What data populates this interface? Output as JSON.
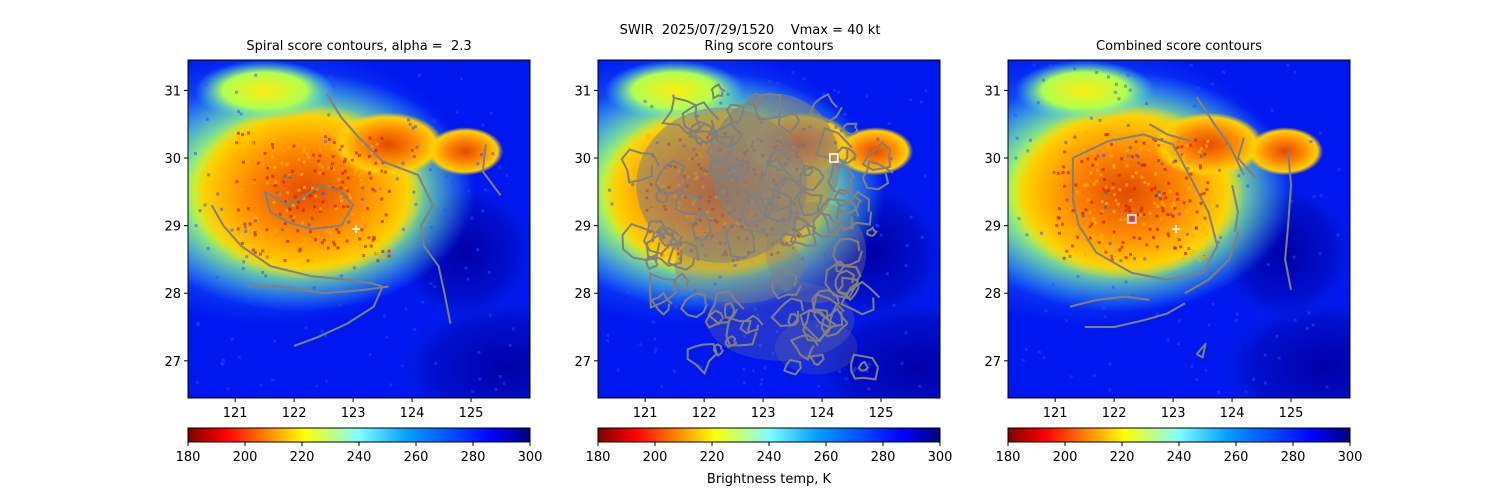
{
  "figure": {
    "suptitle": "SWIR  2025/07/29/1520    Vmax = 40 kt",
    "colorbar_label": "Brightness temp, K"
  },
  "chart_data": [
    {
      "type": "heatmap",
      "title": "Spiral score contours, alpha =  2.3",
      "xlim": [
        120.2,
        126.0
      ],
      "ylim": [
        26.45,
        31.45
      ],
      "xticks": [
        121,
        122,
        123,
        124,
        125
      ],
      "yticks": [
        27,
        28,
        29,
        30,
        31
      ],
      "colormap": "jet",
      "color_range": [
        180,
        300
      ],
      "colorbar_ticks": [
        180,
        200,
        220,
        240,
        260,
        280,
        300
      ],
      "center_marker": {
        "lon": 123.05,
        "lat": 28.95,
        "symbol": "+"
      },
      "contours": [
        [
          [
            121.5,
            29.5
          ],
          [
            121.9,
            29.3
          ],
          [
            122.2,
            29.45
          ],
          [
            122.45,
            29.6
          ],
          [
            122.8,
            29.5
          ],
          [
            123.0,
            29.3
          ],
          [
            122.8,
            29.0
          ],
          [
            122.3,
            28.95
          ],
          [
            121.9,
            29.05
          ],
          [
            121.6,
            29.2
          ],
          [
            121.5,
            29.5
          ]
        ],
        [
          [
            120.6,
            29.3
          ],
          [
            120.8,
            29.0
          ],
          [
            121.1,
            28.7
          ],
          [
            121.6,
            28.4
          ],
          [
            122.3,
            28.25
          ],
          [
            122.9,
            28.2
          ],
          [
            123.3,
            28.15
          ],
          [
            123.5,
            28.1
          ]
        ],
        [
          [
            121.2,
            28.1
          ],
          [
            121.8,
            28.1
          ],
          [
            122.5,
            28.0
          ],
          [
            123.2,
            28.05
          ],
          [
            123.6,
            28.1
          ]
        ],
        [
          [
            123.5,
            28.1
          ],
          [
            123.35,
            27.8
          ],
          [
            122.9,
            27.55
          ],
          [
            122.4,
            27.35
          ],
          [
            122.0,
            27.22
          ]
        ],
        [
          [
            122.55,
            30.95
          ],
          [
            122.8,
            30.6
          ],
          [
            123.1,
            30.3
          ],
          [
            123.5,
            29.95
          ],
          [
            124.1,
            29.75
          ],
          [
            124.35,
            29.3
          ],
          [
            124.15,
            29.0
          ],
          [
            124.2,
            28.7
          ],
          [
            124.45,
            28.4
          ],
          [
            124.55,
            28.0
          ],
          [
            124.65,
            27.55
          ]
        ],
        [
          [
            125.25,
            30.2
          ],
          [
            125.2,
            29.8
          ],
          [
            125.5,
            29.45
          ]
        ]
      ]
    },
    {
      "type": "heatmap",
      "title": "Ring score contours",
      "xlim": [
        120.2,
        126.0
      ],
      "ylim": [
        26.45,
        31.45
      ],
      "xticks": [
        121,
        122,
        123,
        124,
        125
      ],
      "yticks": [
        27,
        28,
        29,
        30,
        31
      ],
      "colormap": "jet",
      "color_range": [
        180,
        300
      ],
      "colorbar_ticks": [
        180,
        200,
        220,
        240,
        260,
        280,
        300
      ],
      "square_marker": {
        "lon": 124.2,
        "lat": 30.0
      },
      "ring_cluster_extent": {
        "lon": [
          120.6,
          125.2
        ],
        "lat": [
          26.8,
          31.1
        ]
      },
      "contours": []
    },
    {
      "type": "heatmap",
      "title": "Combined score contours",
      "xlim": [
        120.2,
        126.0
      ],
      "ylim": [
        26.45,
        31.45
      ],
      "xticks": [
        121,
        122,
        123,
        124,
        125
      ],
      "yticks": [
        27,
        28,
        29,
        30,
        31
      ],
      "colormap": "jet",
      "color_range": [
        180,
        300
      ],
      "colorbar_ticks": [
        180,
        200,
        220,
        240,
        260,
        280,
        300
      ],
      "center_marker": {
        "lon": 123.05,
        "lat": 28.95,
        "symbol": "+"
      },
      "best_point": {
        "lon": 122.3,
        "lat": 29.1
      },
      "contours": [
        [
          [
            121.3,
            30.0
          ],
          [
            121.9,
            30.25
          ],
          [
            122.5,
            30.35
          ],
          [
            123.0,
            30.2
          ],
          [
            123.3,
            29.7
          ],
          [
            123.6,
            29.2
          ],
          [
            123.75,
            28.7
          ],
          [
            123.5,
            28.3
          ],
          [
            122.9,
            28.2
          ],
          [
            122.3,
            28.3
          ],
          [
            121.7,
            28.6
          ],
          [
            121.4,
            29.0
          ],
          [
            121.3,
            29.4
          ],
          [
            121.3,
            30.0
          ]
        ],
        [
          [
            122.6,
            30.5
          ],
          [
            122.9,
            30.35
          ],
          [
            123.3,
            30.25
          ]
        ],
        [
          [
            123.4,
            30.9
          ],
          [
            123.7,
            30.5
          ],
          [
            123.95,
            30.2
          ],
          [
            124.2,
            29.75
          ]
        ],
        [
          [
            124.0,
            29.6
          ],
          [
            124.1,
            29.2
          ],
          [
            124.05,
            28.9
          ]
        ],
        [
          [
            123.2,
            28.0
          ],
          [
            123.6,
            28.2
          ],
          [
            123.95,
            28.5
          ],
          [
            124.1,
            28.9
          ]
        ],
        [
          [
            121.25,
            27.8
          ],
          [
            121.7,
            27.9
          ],
          [
            122.2,
            27.95
          ],
          [
            122.6,
            27.9
          ]
        ],
        [
          [
            121.5,
            27.5
          ],
          [
            122.0,
            27.5
          ],
          [
            122.5,
            27.6
          ],
          [
            122.9,
            27.7
          ],
          [
            123.2,
            27.85
          ]
        ],
        [
          [
            124.95,
            30.1
          ],
          [
            125.0,
            29.6
          ],
          [
            124.95,
            29.0
          ],
          [
            124.9,
            28.5
          ],
          [
            125.0,
            28.05
          ]
        ],
        [
          [
            124.2,
            30.3
          ],
          [
            124.1,
            30.0
          ],
          [
            124.4,
            29.7
          ]
        ],
        [
          [
            123.4,
            27.1
          ],
          [
            123.55,
            27.25
          ],
          [
            123.5,
            27.05
          ],
          [
            123.4,
            27.1
          ]
        ]
      ]
    }
  ]
}
